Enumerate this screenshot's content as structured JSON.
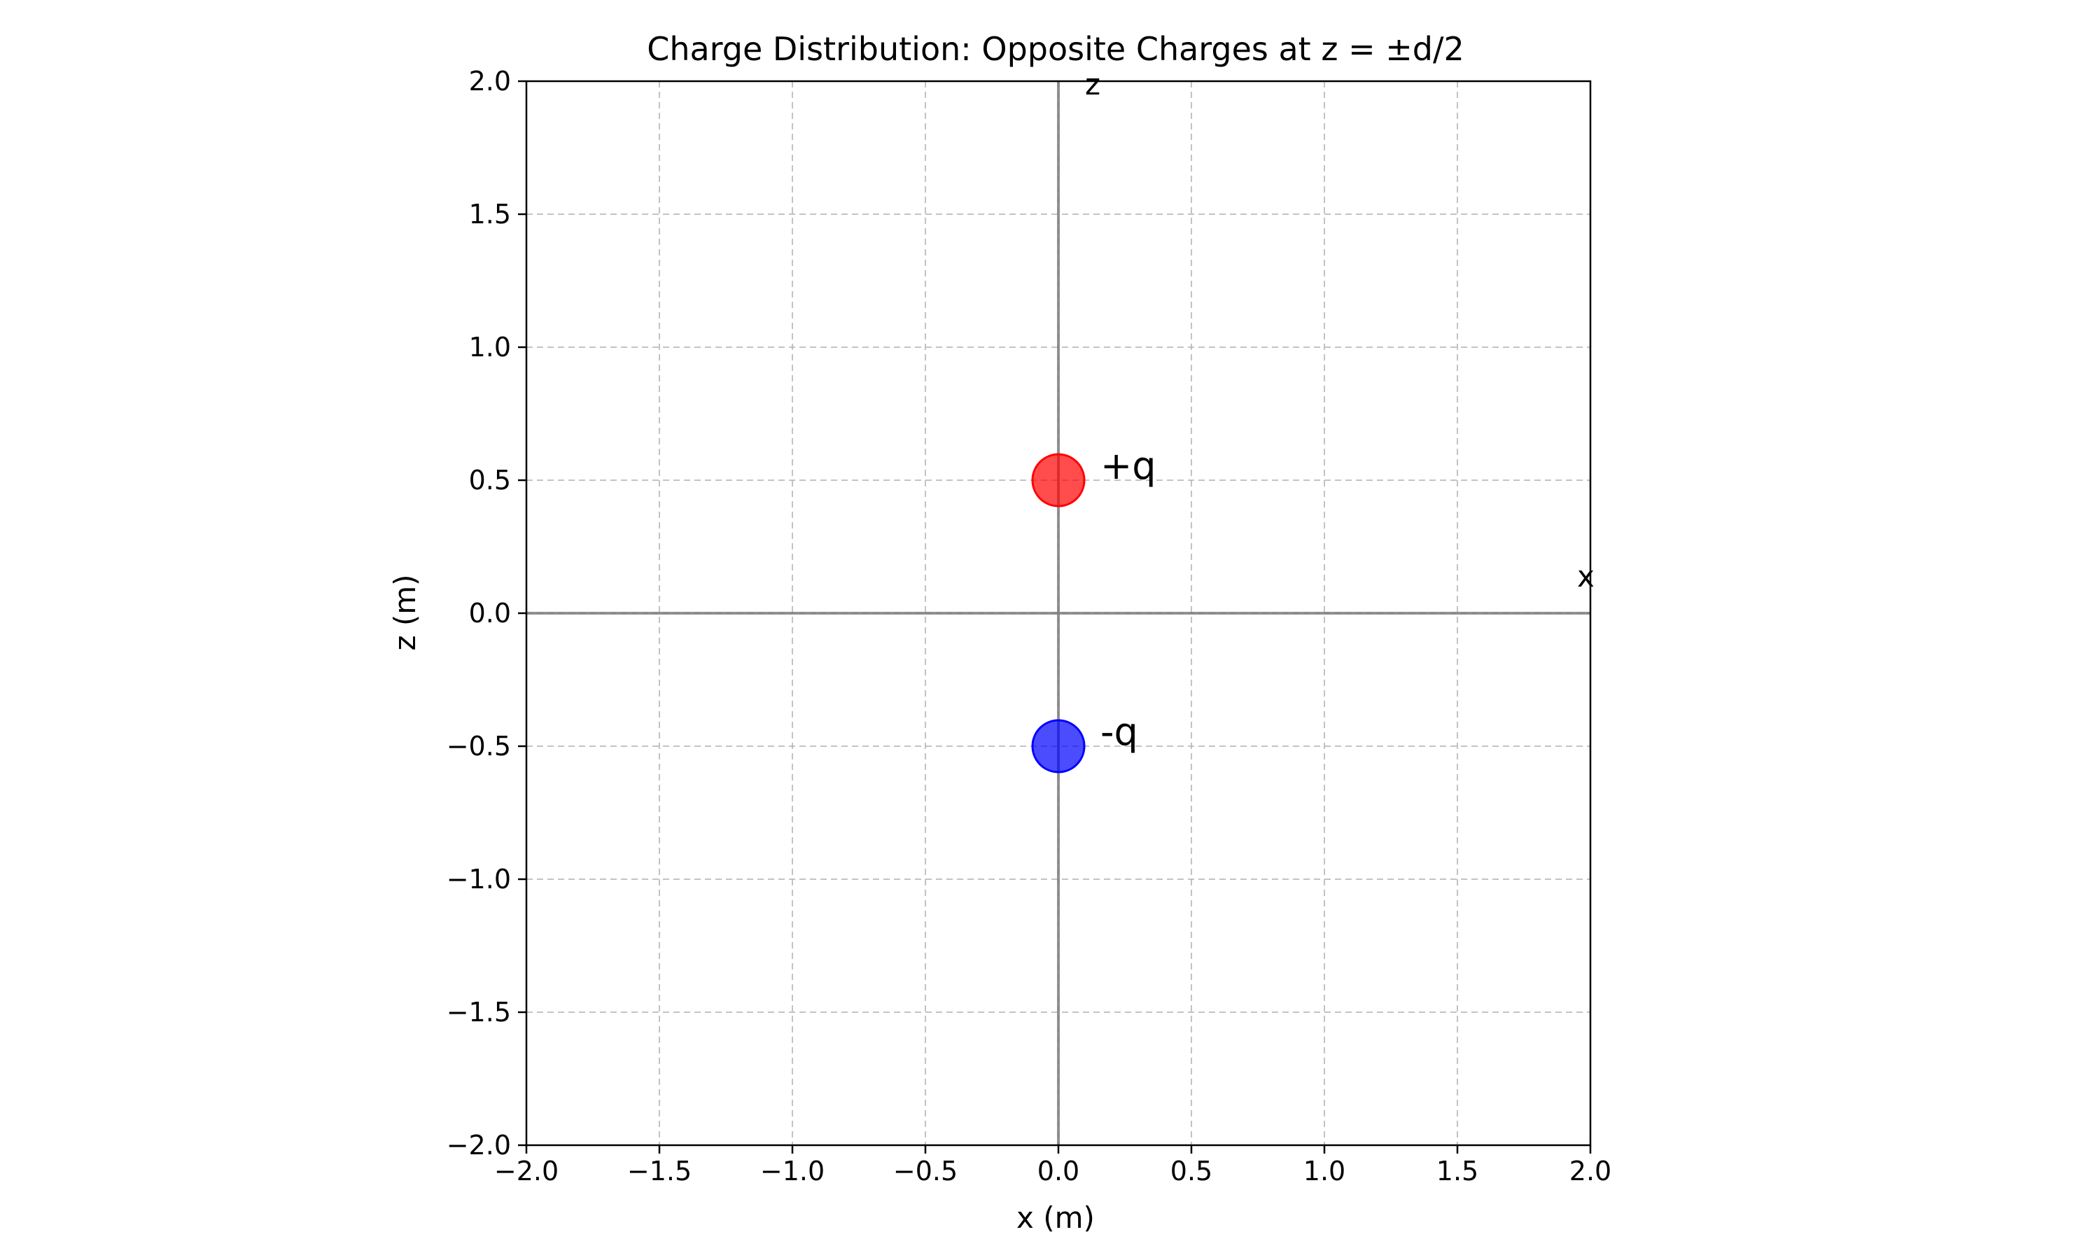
{
  "chart_data": {
    "type": "scatter",
    "title": "Charge Distribution: Opposite Charges at z = ±d/2",
    "xlabel": "x (m)",
    "ylabel": "z (m)",
    "xlim": [
      -2.0,
      2.0
    ],
    "ylim": [
      -2.0,
      2.0
    ],
    "x_ticks": [
      -2.0,
      -1.5,
      -1.0,
      -0.5,
      0.0,
      0.5,
      1.0,
      1.5,
      2.0
    ],
    "y_ticks": [
      -2.0,
      -1.5,
      -1.0,
      -0.5,
      0.0,
      0.5,
      1.0,
      1.5,
      2.0
    ],
    "x_tick_labels": [
      "−2.0",
      "−1.5",
      "−1.0",
      "−0.5",
      "0.0",
      "0.5",
      "1.0",
      "1.5",
      "2.0"
    ],
    "y_tick_labels": [
      "−2.0",
      "−1.5",
      "−1.0",
      "−0.5",
      "0.0",
      "0.5",
      "1.0",
      "1.5",
      "2.0"
    ],
    "grid": true,
    "grid_style": "dashed",
    "aspect": "equal",
    "points": [
      {
        "label": "+q",
        "x": 0.0,
        "y": 0.5,
        "color": "#ff0000",
        "edge": "#ff0000"
      },
      {
        "label": "-q",
        "x": 0.0,
        "y": -0.5,
        "color": "#0000ff",
        "edge": "#0000ff"
      }
    ],
    "axis_lines": [
      {
        "label": "z",
        "orientation": "vertical",
        "at": 0.0,
        "label_at": [
          0.1,
          1.95
        ]
      },
      {
        "label": "x",
        "orientation": "horizontal",
        "at": 0.0,
        "label_at": [
          1.95,
          0.1
        ]
      }
    ],
    "colors": {
      "grid": "#b0b0b0",
      "axis_line": "#808080",
      "frame": "#000000"
    }
  }
}
